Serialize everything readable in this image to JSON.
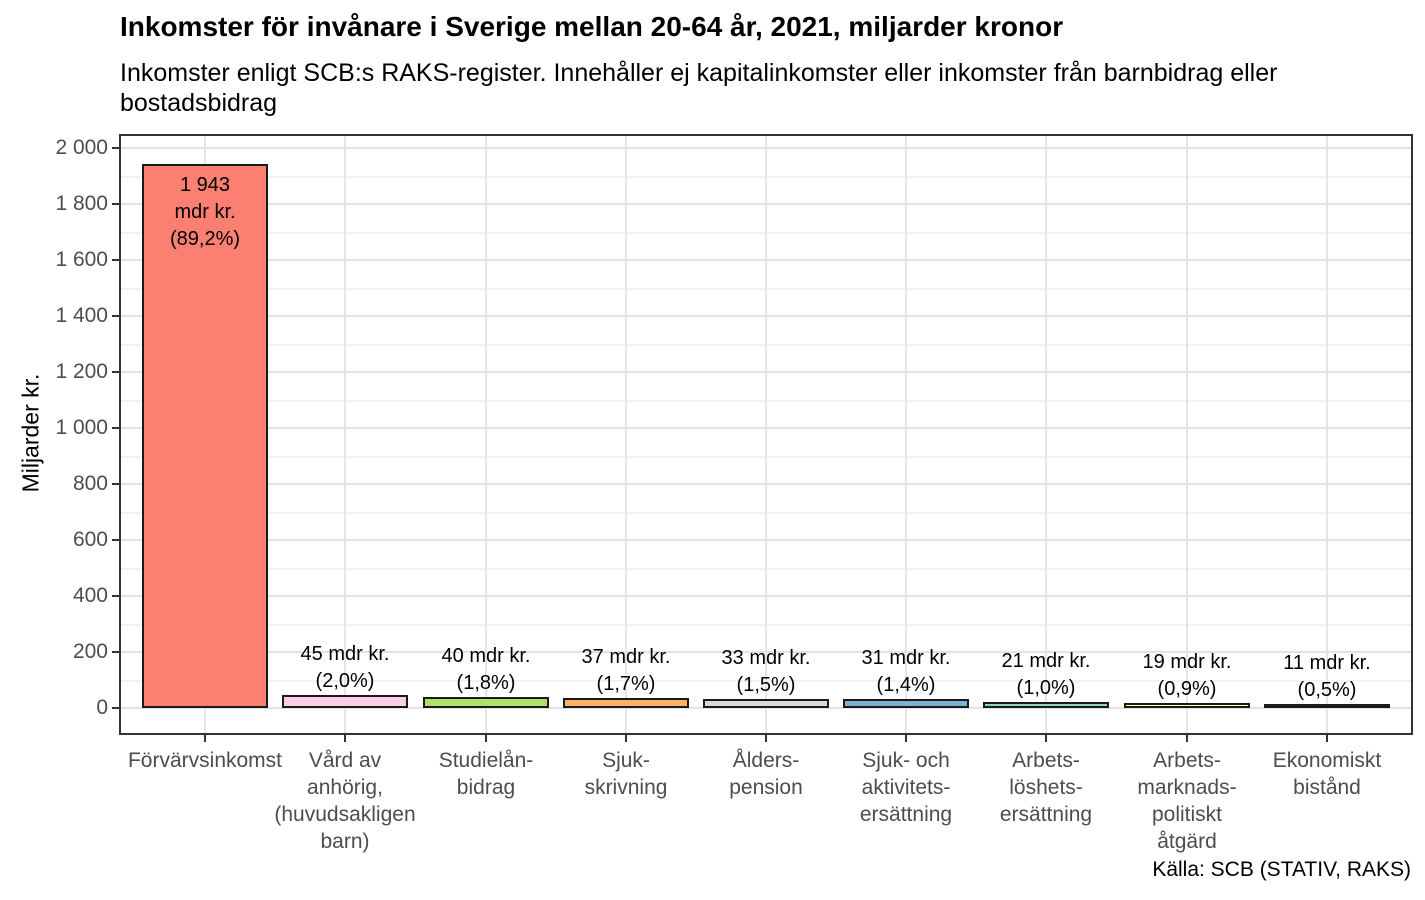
{
  "chart_data": {
    "type": "bar",
    "title": "Inkomster för invånare i Sverige mellan 20-64 år, 2021, miljarder kronor",
    "subtitle": "Inkomster enligt SCB:s RAKS-register. Innehåller ej kapitalinkomster eller inkomster från barnbidrag eller bostadsbidrag",
    "ylabel": "Miljarder kr.",
    "xlabel": "",
    "caption": "Källa: SCB (STATIV, RAKS)",
    "ylim": [
      0,
      2000
    ],
    "legend": "none",
    "grid": {
      "horizontal": "major+minor",
      "vertical": "major-at-category-centers"
    },
    "yticks": {
      "values": [
        0,
        200,
        400,
        600,
        800,
        1000,
        1200,
        1400,
        1600,
        1800,
        2000
      ],
      "labels": [
        "0",
        "200",
        "400",
        "600",
        "800",
        "1 000",
        "1 200",
        "1 400",
        "1 600",
        "1 800",
        "2 000"
      ]
    },
    "categories": [
      "Förvärvsinkomst",
      "Vård av anhörig, (huvudsakligen barn)",
      "Studielånbidrag",
      "Sjukskrivning",
      "Ålderspension",
      "Sjuk- och aktivitetsersättning",
      "Arbetslöshetsersättning",
      "Arbetsmarknadspolitiskt åtgärd",
      "Ekonomiskt bistånd"
    ],
    "values": [
      1943,
      45,
      40,
      37,
      33,
      31,
      21,
      19,
      11
    ],
    "bars": [
      {
        "category_lines": [
          "Förvärvsinkomst"
        ],
        "value": 1943,
        "pct": "89,2%",
        "label_lines": [
          "1 943",
          "mdr kr.",
          "(89,2%)"
        ],
        "label_placement": "inside-top",
        "color": "#FB8072"
      },
      {
        "category_lines": [
          "Vård av",
          "anhörig,",
          "(huvudsakligen",
          "barn)"
        ],
        "value": 45,
        "pct": "2,0%",
        "label_lines": [
          "45 mdr kr.",
          "(2,0%)"
        ],
        "label_placement": "above",
        "color": "#FCCDE5"
      },
      {
        "category_lines": [
          "Studielån-",
          "bidrag"
        ],
        "value": 40,
        "pct": "1,8%",
        "label_lines": [
          "40 mdr kr.",
          "(1,8%)"
        ],
        "label_placement": "above",
        "color": "#B3DE69"
      },
      {
        "category_lines": [
          "Sjuk-",
          "skrivning"
        ],
        "value": 37,
        "pct": "1,7%",
        "label_lines": [
          "37 mdr kr.",
          "(1,7%)"
        ],
        "label_placement": "above",
        "color": "#FDB462"
      },
      {
        "category_lines": [
          "Ålders-",
          "pension"
        ],
        "value": 33,
        "pct": "1,5%",
        "label_lines": [
          "33 mdr kr.",
          "(1,5%)"
        ],
        "label_placement": "above",
        "color": "#D9D9D9"
      },
      {
        "category_lines": [
          "Sjuk- och",
          "aktivitets-",
          "ersättning"
        ],
        "value": 31,
        "pct": "1,4%",
        "label_lines": [
          "31 mdr kr.",
          "(1,4%)"
        ],
        "label_placement": "above",
        "color": "#80B1D3"
      },
      {
        "category_lines": [
          "Arbets-",
          "löshets-",
          "ersättning"
        ],
        "value": 21,
        "pct": "1,0%",
        "label_lines": [
          "21 mdr kr.",
          "(1,0%)"
        ],
        "label_placement": "above",
        "color": "#8DD3C7"
      },
      {
        "category_lines": [
          "Arbets-",
          "marknads-",
          "politiskt",
          "åtgärd"
        ],
        "value": 19,
        "pct": "0,9%",
        "label_lines": [
          "19 mdr kr.",
          "(0,9%)"
        ],
        "label_placement": "above",
        "color": "#FFFFB3"
      },
      {
        "category_lines": [
          "Ekonomiskt",
          "bistånd"
        ],
        "value": 11,
        "pct": "0,5%",
        "label_lines": [
          "11 mdr kr.",
          "(0,5%)"
        ],
        "label_placement": "above",
        "color": "#BEBADA"
      }
    ],
    "colors": {
      "background": "#FFFFFF",
      "panel_border": "#333333",
      "grid_major": "#E2E2E2",
      "grid_minor": "#F2F2F2",
      "axis_text": "#4D4D4D",
      "tick_mark": "#333333",
      "bar_outline": "#1A1A1A",
      "text": "#000000"
    }
  }
}
